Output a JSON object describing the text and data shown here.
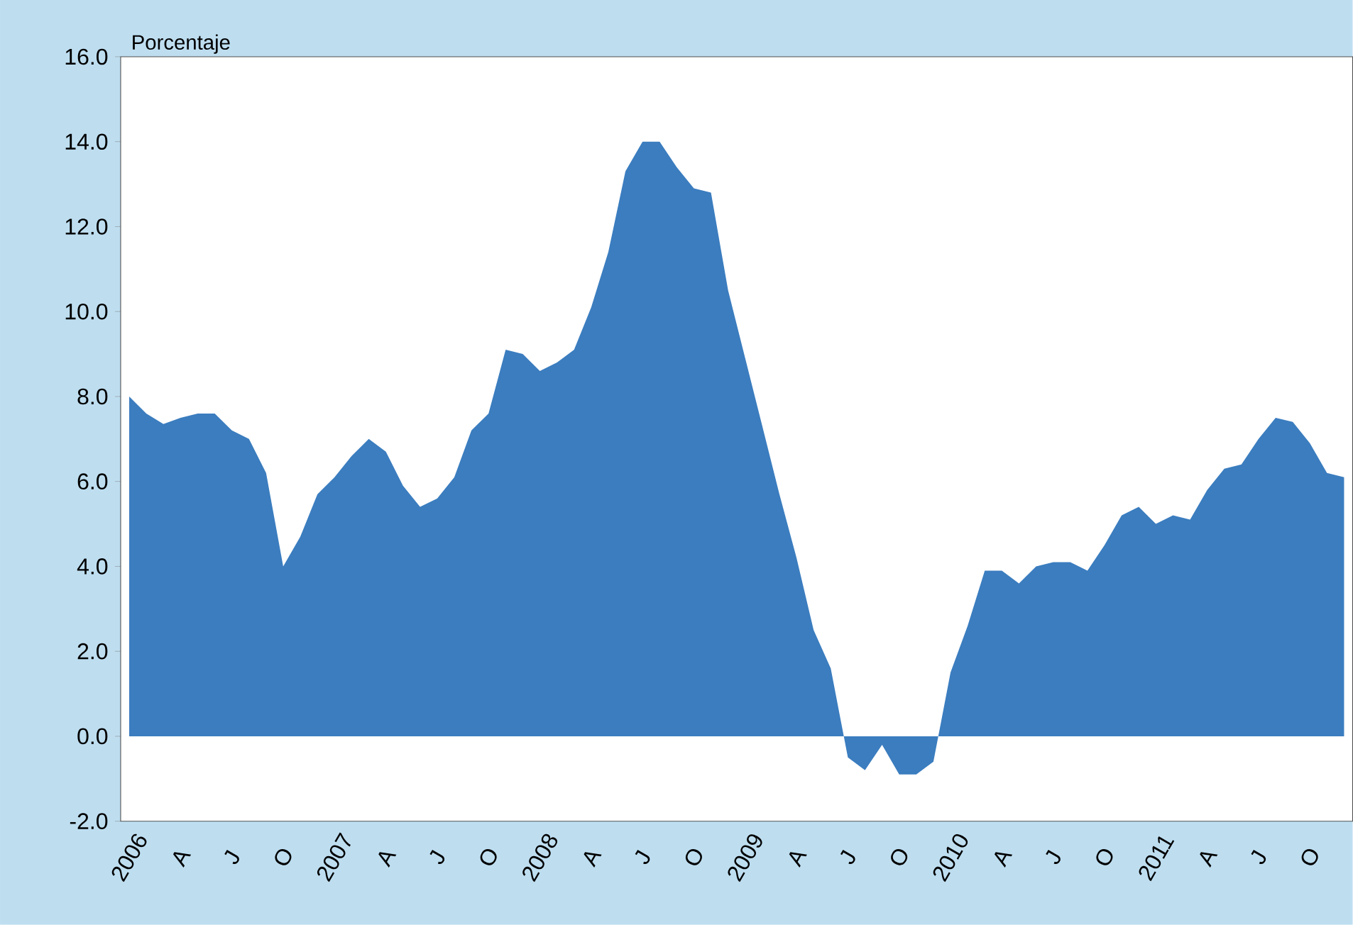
{
  "chart_data": {
    "type": "area",
    "ylabel": "Porcentaje",
    "categories": [
      "2006",
      null,
      null,
      "A",
      null,
      null,
      "J",
      null,
      null,
      "O",
      null,
      null,
      "2007",
      null,
      null,
      "A",
      null,
      null,
      "J",
      null,
      null,
      "O",
      null,
      null,
      "2008",
      null,
      null,
      "A",
      null,
      null,
      "J",
      null,
      null,
      "O",
      null,
      null,
      "2009",
      null,
      null,
      "A",
      null,
      null,
      "J",
      null,
      null,
      "O",
      null,
      null,
      "2010",
      null,
      null,
      "A",
      null,
      null,
      "J",
      null,
      null,
      "O",
      null,
      null,
      "2011",
      null,
      null,
      "A",
      null,
      null,
      "J",
      null,
      null,
      "O",
      null,
      null
    ],
    "series": [
      {
        "color": "#3b7dbf",
        "values": [
          8.0,
          7.6,
          7.35,
          7.5,
          7.6,
          7.6,
          7.2,
          7.0,
          6.2,
          4.0,
          4.7,
          5.7,
          6.1,
          6.6,
          7.0,
          6.7,
          5.9,
          5.4,
          5.6,
          6.1,
          7.2,
          7.6,
          9.1,
          9.0,
          8.6,
          8.8,
          9.1,
          10.1,
          11.4,
          13.3,
          14.0,
          14.0,
          13.4,
          12.9,
          12.8,
          10.5,
          8.9,
          7.3,
          5.7,
          4.2,
          2.5,
          1.6,
          -0.5,
          -0.8,
          -0.2,
          -0.9,
          -0.9,
          -0.6,
          1.5,
          2.6,
          3.9,
          3.9,
          3.6,
          4.0,
          4.1,
          4.1,
          3.9,
          4.5,
          5.2,
          5.4,
          5.0,
          5.2,
          5.1,
          5.8,
          6.3,
          6.4,
          7.0,
          7.5,
          7.4,
          6.9,
          6.2,
          6.1
        ]
      }
    ],
    "ylim": [
      -2,
      16
    ],
    "yticks": [
      {
        "value": -2,
        "label": "-2.0"
      },
      {
        "value": 0,
        "label": "0.0"
      },
      {
        "value": 2,
        "label": "2.0"
      },
      {
        "value": 4,
        "label": "4.0"
      },
      {
        "value": 6,
        "label": "6.0"
      },
      {
        "value": 8,
        "label": "8.0"
      },
      {
        "value": 10,
        "label": "10.0"
      },
      {
        "value": 12,
        "label": "12.0"
      },
      {
        "value": 14,
        "label": "14.0"
      },
      {
        "value": 16,
        "label": "16.0"
      }
    ]
  }
}
